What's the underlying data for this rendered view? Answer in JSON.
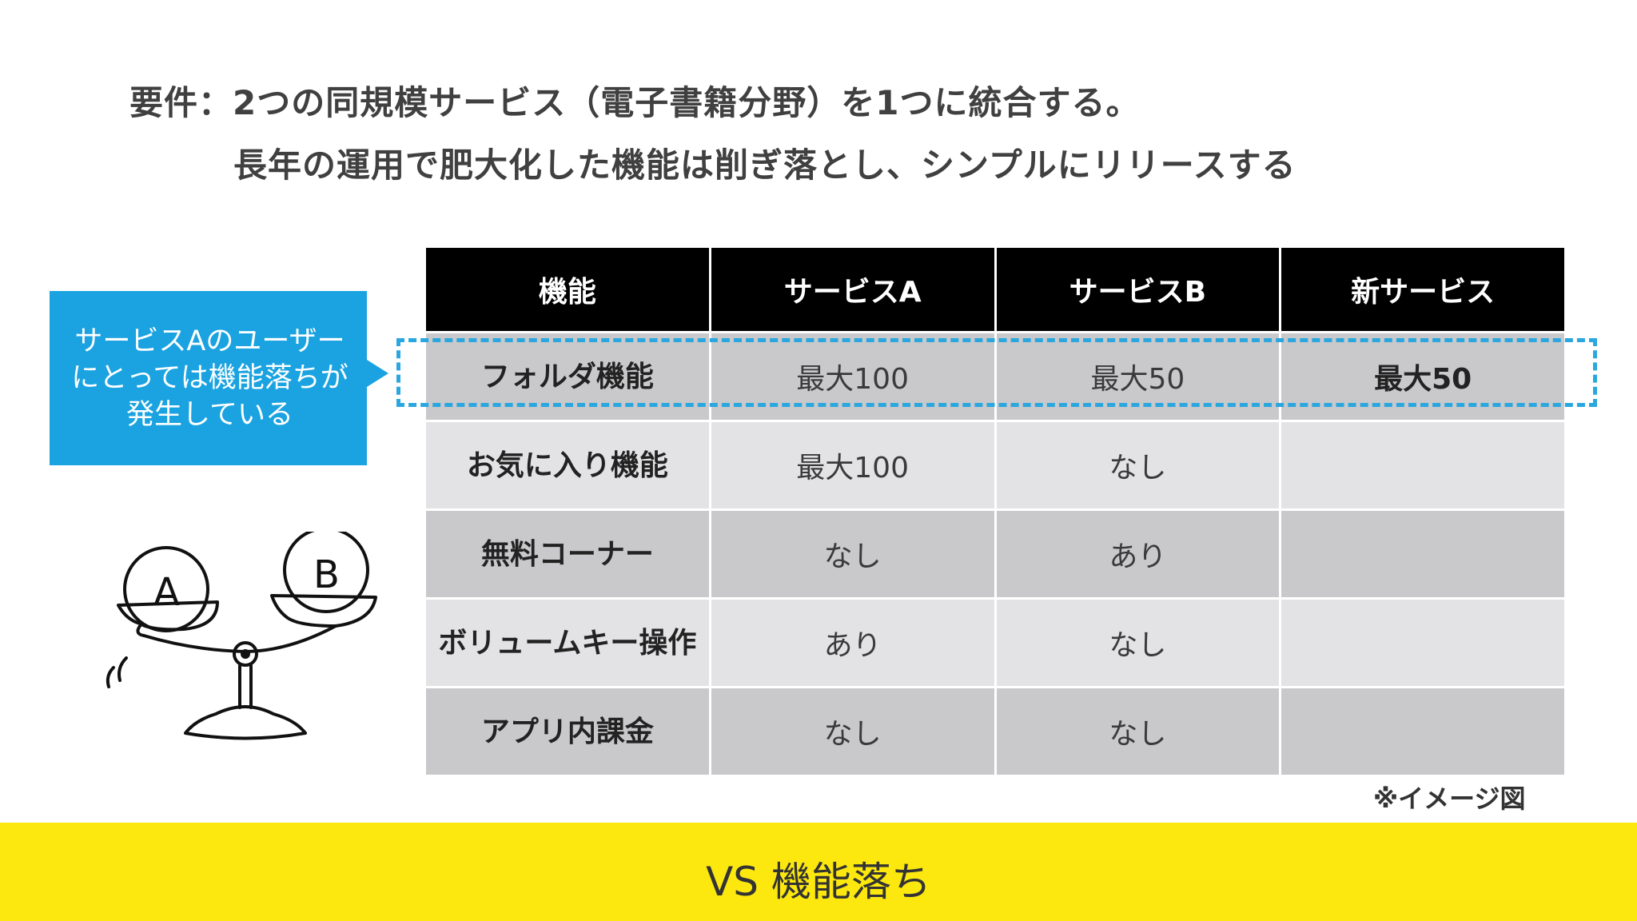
{
  "requirement": {
    "line1": "要件：2つの同規模サービス（電子書籍分野）を1つに統合する。",
    "line2": "長年の運用で肥大化した機能は削ぎ落とし、シンプルにリリースする"
  },
  "table": {
    "headers": [
      "機能",
      "サービスA",
      "サービスB",
      "新サービス"
    ],
    "rows": [
      {
        "feature": "フォルダ機能",
        "a": "最大100",
        "b": "最大50",
        "new": "最大50"
      },
      {
        "feature": "お気に入り機能",
        "a": "最大100",
        "b": "なし",
        "new": ""
      },
      {
        "feature": "無料コーナー",
        "a": "なし",
        "b": "あり",
        "new": ""
      },
      {
        "feature": "ボリュームキー操作",
        "a": "あり",
        "b": "なし",
        "new": ""
      },
      {
        "feature": "アプリ内課金",
        "a": "なし",
        "b": "なし",
        "new": ""
      }
    ]
  },
  "callout": {
    "text": "サービスAのユーザーにとっては機能落ちが発生している"
  },
  "illustration": {
    "left_label": "A",
    "right_label": "B",
    "icon": "balance-scale-icon"
  },
  "note": "※イメージ図",
  "footer": {
    "text": "VS 機能落ち"
  },
  "colors": {
    "header_bg": "#000000",
    "row_dark": "#c9c8cb",
    "row_light": "#e3e3e6",
    "callout": "#1aa3e0",
    "footer": "#fce80f"
  }
}
